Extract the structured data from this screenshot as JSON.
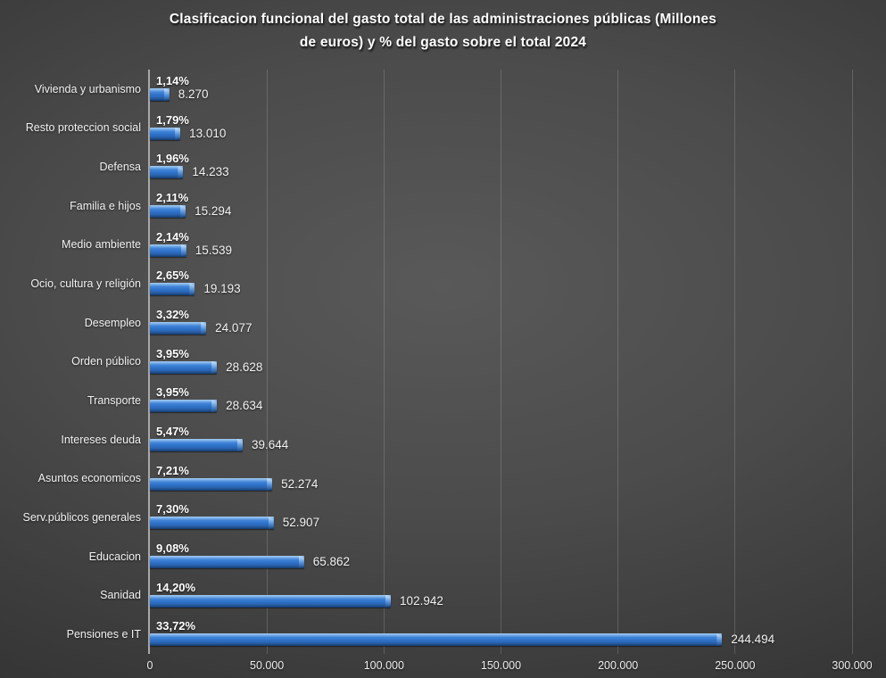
{
  "title": {
    "line1": "Clasificacion funcional del gasto total de las administraciones públicas (Millones",
    "line2": "de euros) y % del gasto sobre el total 2024"
  },
  "colors": {
    "background_center": "#595959",
    "background_edge": "#282828",
    "bar_main": "#2f73cb",
    "bar_highlight": "#a6cdf2",
    "bar_shadow": "#163a6b",
    "axis_line": "#a8a8a8",
    "gridline": "rgba(255,255,255,0.16)",
    "text": "#ffffff"
  },
  "chart_data": {
    "type": "bar",
    "orientation": "horizontal",
    "title": "Clasificacion funcional del gasto total de las administraciones públicas (Millones de euros) y % del gasto sobre el total 2024",
    "categories": [
      "Vivienda y urbanismo",
      "Resto proteccion social",
      "Defensa",
      "Familia e hijos",
      "Medio ambiente",
      "Ocio, cultura y religión",
      "Desempleo",
      "Orden público",
      "Transporte",
      "Intereses deuda",
      "Asuntos economicos",
      "Serv.públicos generales",
      "Educacion",
      "Sanidad",
      "Pensiones e IT"
    ],
    "values": [
      8270,
      13010,
      14233,
      15294,
      15539,
      19193,
      24077,
      28628,
      28634,
      39644,
      52274,
      52907,
      65862,
      102942,
      244494
    ],
    "value_labels": [
      "8.270",
      "13.010",
      "14.233",
      "15.294",
      "15.539",
      "19.193",
      "24.077",
      "28.628",
      "28.634",
      "39.644",
      "52.274",
      "52.907",
      "65.862",
      "102.942",
      "244.494"
    ],
    "pct_labels": [
      "1,14%",
      "1,79%",
      "1,96%",
      "2,11%",
      "2,14%",
      "2,65%",
      "3,32%",
      "3,95%",
      "3,95%",
      "5,47%",
      "7,21%",
      "7,30%",
      "9,08%",
      "14,20%",
      "33,72%"
    ],
    "x_ticks": [
      "0",
      "50.000",
      "100.000",
      "150.000",
      "200.000",
      "250.000",
      "300.000"
    ],
    "xlim": [
      0,
      300000
    ],
    "grid": true,
    "legend": false
  }
}
